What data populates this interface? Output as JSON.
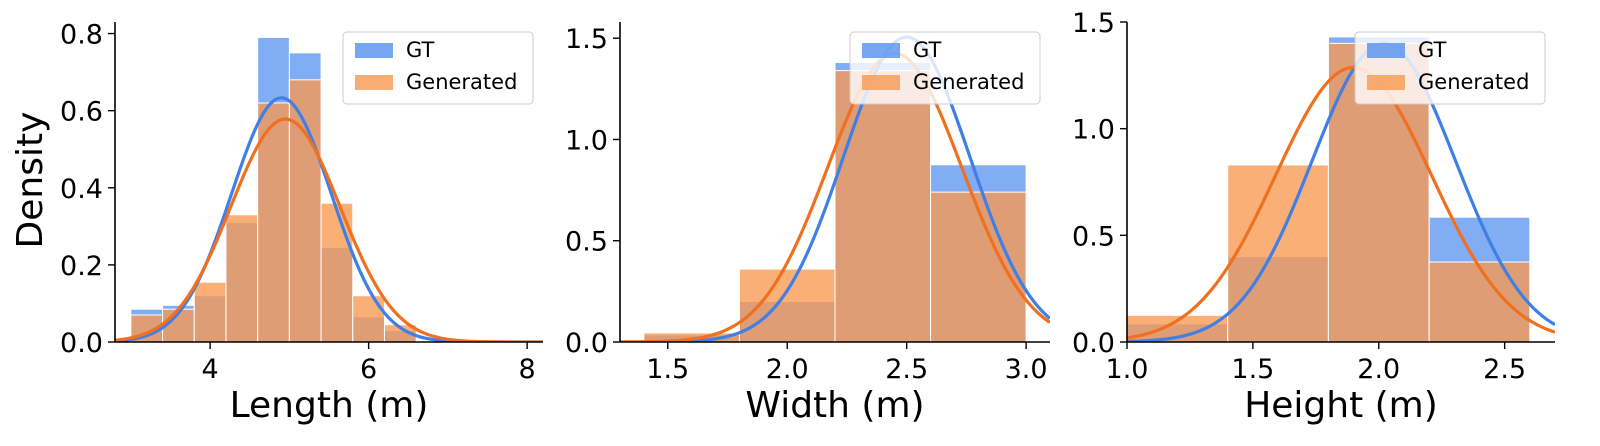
{
  "figure": {
    "ylabel": "Density"
  },
  "colors": {
    "gt": "#5591f0",
    "generated": "#f89850",
    "gt_line": "#3f7fe6",
    "generated_line": "#f07020",
    "overlap": "#cd8f72"
  },
  "chart_data": [
    {
      "type": "bar",
      "xlabel": "Length (m)",
      "ylabel": "Density",
      "xlim": [
        2.8,
        8.2
      ],
      "ylim": [
        0,
        0.83
      ],
      "xticks": [
        4,
        6,
        8
      ],
      "yticks": [
        0.0,
        0.2,
        0.4,
        0.6,
        0.8
      ],
      "xtick_labels": [
        "4",
        "6",
        "8"
      ],
      "ytick_labels": [
        "0.0",
        "0.2",
        "0.4",
        "0.6",
        "0.8"
      ],
      "legend": {
        "position": "top-right",
        "entries": [
          "GT",
          "Generated"
        ]
      },
      "bin_edges": [
        3.0,
        3.4,
        3.8,
        4.2,
        4.6,
        5.0,
        5.4,
        5.8,
        6.2,
        6.6
      ],
      "series": [
        {
          "name": "GT",
          "values": [
            0.085,
            0.095,
            0.12,
            0.31,
            0.79,
            0.75,
            0.245,
            0.065,
            0.03
          ],
          "kde": {
            "mean": 4.9,
            "std": 0.63
          }
        },
        {
          "name": "Generated",
          "values": [
            0.07,
            0.085,
            0.155,
            0.33,
            0.62,
            0.68,
            0.36,
            0.12,
            0.045
          ],
          "kde": {
            "mean": 4.95,
            "std": 0.69
          }
        }
      ]
    },
    {
      "type": "bar",
      "xlabel": "Width (m)",
      "ylabel": "",
      "xlim": [
        1.3,
        3.1
      ],
      "ylim": [
        0,
        1.58
      ],
      "xticks": [
        1.5,
        2.0,
        2.5,
        3.0
      ],
      "yticks": [
        0.0,
        0.5,
        1.0,
        1.5
      ],
      "xtick_labels": [
        "1.5",
        "2.0",
        "2.5",
        "3.0"
      ],
      "ytick_labels": [
        "0.0",
        "0.5",
        "1.0",
        "1.5"
      ],
      "legend": {
        "position": "top-right",
        "entries": [
          "GT",
          "Generated"
        ]
      },
      "bin_edges": [
        1.4,
        1.8,
        2.2,
        2.6,
        3.0
      ],
      "series": [
        {
          "name": "GT",
          "values": [
            0.035,
            0.2,
            1.38,
            0.875
          ],
          "kde": {
            "mean": 2.5,
            "std": 0.265
          }
        },
        {
          "name": "Generated",
          "values": [
            0.045,
            0.36,
            1.34,
            0.74
          ],
          "kde": {
            "mean": 2.45,
            "std": 0.28
          }
        }
      ]
    },
    {
      "type": "bar",
      "xlabel": "Height (m)",
      "ylabel": "",
      "xlim": [
        1.0,
        2.7
      ],
      "ylim": [
        0,
        1.5
      ],
      "xticks": [
        1.0,
        1.5,
        2.0,
        2.5
      ],
      "yticks": [
        0.0,
        0.5,
        1.0,
        1.5
      ],
      "xtick_labels": [
        "1.0",
        "1.5",
        "2.0",
        "2.5"
      ],
      "ytick_labels": [
        "0.0",
        "0.5",
        "1.0",
        "1.5"
      ],
      "legend": {
        "position": "top-right",
        "entries": [
          "GT",
          "Generated"
        ]
      },
      "bin_edges": [
        1.0,
        1.4,
        1.8,
        2.2,
        2.6
      ],
      "series": [
        {
          "name": "GT",
          "values": [
            0.085,
            0.4,
            1.43,
            0.585
          ],
          "kde": {
            "mean": 2.02,
            "std": 0.285
          }
        },
        {
          "name": "Generated",
          "values": [
            0.125,
            0.83,
            1.4,
            0.375
          ],
          "kde": {
            "mean": 1.9,
            "std": 0.31
          }
        }
      ]
    }
  ]
}
